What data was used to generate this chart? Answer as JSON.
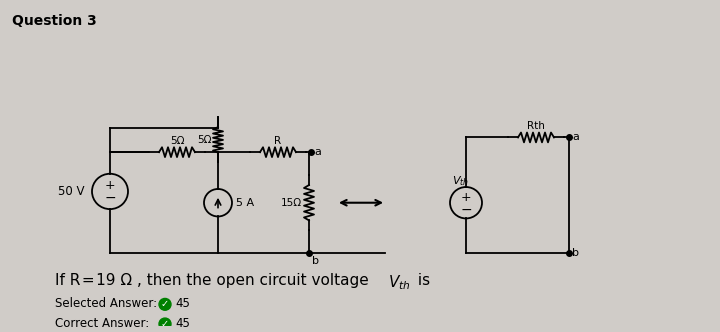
{
  "title": "Question 3",
  "background_color": "#d0ccc8",
  "text_color": "#000000",
  "question_text": "If R = 19 Ω , then the open circuit voltage V",
  "question_sub": "th",
  "question_end": " is",
  "selected_label": "Selected Answer:",
  "selected_value": "45",
  "correct_label": "Correct Answer:",
  "correct_value": "45",
  "source_voltage": "50 V",
  "current_source": "5 A",
  "resistors": [
    "5Ω",
    "5Ω",
    "R",
    "15Ω",
    "Rth"
  ],
  "node_labels": [
    "a",
    "b",
    "a",
    "b"
  ],
  "vth_label": "Vth"
}
